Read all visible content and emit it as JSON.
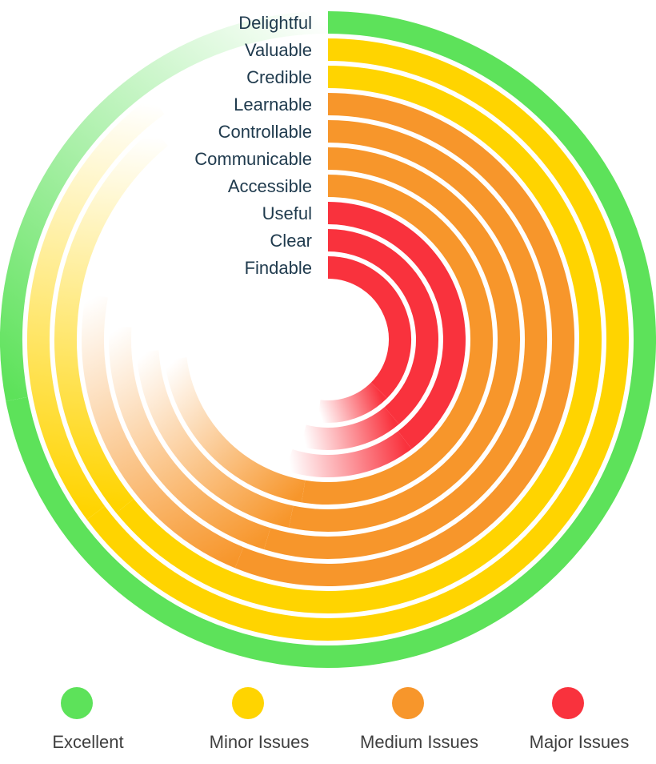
{
  "chart_data": {
    "type": "radial-bar",
    "title": "",
    "categories": [
      "Delightful",
      "Valuable",
      "Credible",
      "Learnable",
      "Controllable",
      "Communicable",
      "Accessible",
      "Useful",
      "Clear",
      "Findable"
    ],
    "series": [
      {
        "category": "Delightful",
        "rating": "Excellent",
        "extent_percent": 100
      },
      {
        "category": "Valuable",
        "rating": "Minor Issues",
        "extent_percent": 90
      },
      {
        "category": "Credible",
        "rating": "Minor Issues",
        "extent_percent": 89
      },
      {
        "category": "Learnable",
        "rating": "Medium Issues",
        "extent_percent": 78
      },
      {
        "category": "Controllable",
        "rating": "Medium Issues",
        "extent_percent": 76
      },
      {
        "category": "Communicable",
        "rating": "Medium Issues",
        "extent_percent": 74
      },
      {
        "category": "Accessible",
        "rating": "Medium Issues",
        "extent_percent": 73
      },
      {
        "category": "Useful",
        "rating": "Major Issues",
        "extent_percent": 55
      },
      {
        "category": "Clear",
        "rating": "Major Issues",
        "extent_percent": 54
      },
      {
        "category": "Findable",
        "rating": "Major Issues",
        "extent_percent": 52
      }
    ],
    "legend": {
      "placement": "bottom",
      "items": [
        {
          "label": "Excellent",
          "color": "#5de25a"
        },
        {
          "label": "Minor Issues",
          "color": "#ffd400"
        },
        {
          "label": "Medium Issues",
          "color": "#f7962b"
        },
        {
          "label": "Major Issues",
          "color": "#f9323d"
        }
      ]
    },
    "colors": {
      "Excellent": "#5de25a",
      "Minor Issues": "#ffd400",
      "Medium Issues": "#f7962b",
      "Major Issues": "#f9323d"
    }
  }
}
